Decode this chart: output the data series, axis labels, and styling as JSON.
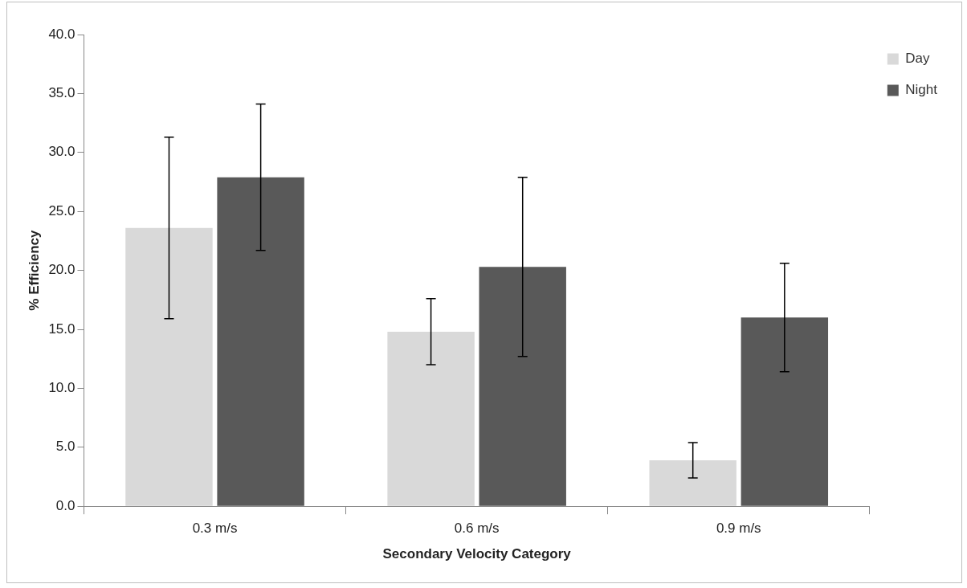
{
  "chart_data": {
    "type": "bar",
    "xlabel": "Secondary Velocity Category",
    "ylabel": "% Efficiency",
    "categories": [
      "0.3 m/s",
      "0.6 m/s",
      "0.9 m/s"
    ],
    "series": [
      {
        "name": "Day",
        "color": "#d9d9d9",
        "values": [
          23.6,
          14.8,
          3.9
        ],
        "errors": [
          7.7,
          2.8,
          1.5
        ]
      },
      {
        "name": "Night",
        "color": "#595959",
        "values": [
          27.9,
          20.3,
          16.0
        ],
        "errors": [
          6.2,
          7.6,
          4.6
        ]
      }
    ],
    "ylim": [
      0,
      40
    ],
    "yticks": [
      {
        "value": 0,
        "label": "0.0"
      },
      {
        "value": 5,
        "label": "5.0"
      },
      {
        "value": 10,
        "label": "10.0"
      },
      {
        "value": 15,
        "label": "15.0"
      },
      {
        "value": 20,
        "label": "20.0"
      },
      {
        "value": 25,
        "label": "25.0"
      },
      {
        "value": 30,
        "label": "30.0"
      },
      {
        "value": 35,
        "label": "35.0"
      },
      {
        "value": 40,
        "label": "40.0"
      }
    ],
    "legend": "top right"
  }
}
